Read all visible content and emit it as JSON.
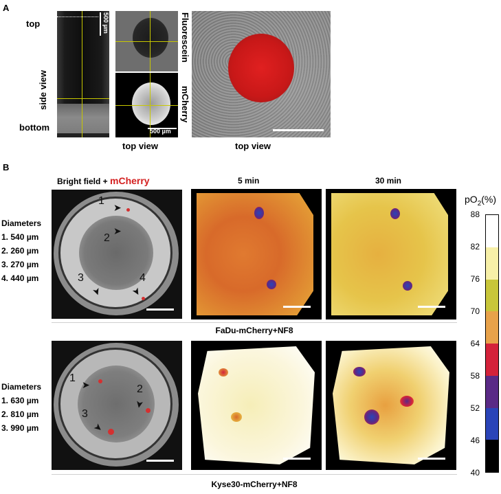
{
  "panel_a": {
    "letter": "A",
    "side_label_top": "top",
    "side_label_middle": "side view",
    "side_label_bottom": "bottom",
    "side_scale": "500 µm",
    "channel_1": "Fluorescein",
    "channel_2": "mCherry",
    "center_scale": "500 µm",
    "caption_1": "top view",
    "caption_2": "top view"
  },
  "panel_b": {
    "letter": "B",
    "col_1_title_prefix": "Bright field + ",
    "col_1_title_highlight": "mCherry",
    "col_2_title": "5  min",
    "col_3_title": "30 min",
    "row_1": {
      "diameters_heading": "Diameters",
      "diameters": [
        "1. 540 µm",
        "2. 260 µm",
        "3. 270 µm",
        "4. 440 µm"
      ],
      "spheroid_numbers": [
        "1",
        "2",
        "3",
        "4"
      ],
      "caption": "FaDu-mCherry+NF8"
    },
    "row_2": {
      "diameters_heading": "Diameters",
      "diameters": [
        "1. 630 µm",
        "2. 810 µm",
        "3. 990 µm"
      ],
      "spheroid_numbers": [
        "1",
        "2",
        "3"
      ],
      "caption": "Kyse30-mCherry+NF8"
    }
  },
  "colorbar": {
    "title_main": "pO",
    "title_sub": "2",
    "title_unit": "(%)",
    "ticks": [
      "88",
      "82",
      "76",
      "70",
      "64",
      "58",
      "52",
      "46",
      "40"
    ],
    "colors": [
      "#ffffff",
      "#f7f0a8",
      "#c8c63a",
      "#e8a24a",
      "#d4223a",
      "#5a2a86",
      "#2a44b8",
      "#000000"
    ]
  }
}
